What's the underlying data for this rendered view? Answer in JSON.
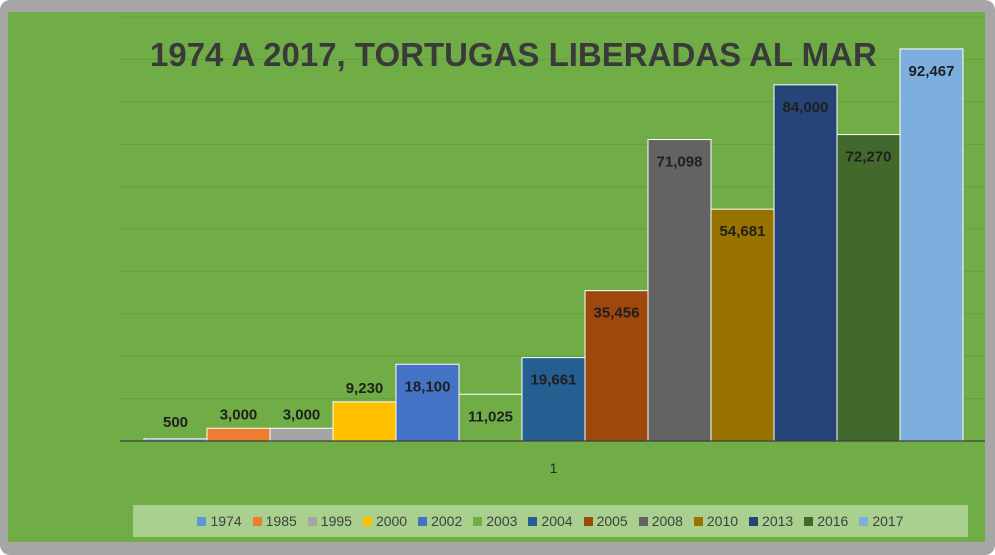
{
  "chart_data": {
    "type": "bar",
    "title": "1974 A 2017, TORTUGAS LIBERADAS AL MAR",
    "categories": [
      "1"
    ],
    "series": [
      {
        "name": "1974",
        "values": [
          500
        ],
        "label": "500",
        "color": "#5b9bd5"
      },
      {
        "name": "1985",
        "values": [
          3000
        ],
        "label": "3,000",
        "color": "#ed7d31"
      },
      {
        "name": "1995",
        "values": [
          3000
        ],
        "label": "3,000",
        "color": "#a5a5a5"
      },
      {
        "name": "2000",
        "values": [
          9230
        ],
        "label": "9,230",
        "color": "#ffc000"
      },
      {
        "name": "2002",
        "values": [
          18100
        ],
        "label": "18,100",
        "color": "#4472c4"
      },
      {
        "name": "2003",
        "values": [
          11025
        ],
        "label": "11,025",
        "color": "#70ad47"
      },
      {
        "name": "2004",
        "values": [
          19661
        ],
        "label": "19,661",
        "color": "#255e91"
      },
      {
        "name": "2005",
        "values": [
          35456
        ],
        "label": "35,456",
        "color": "#9e480e"
      },
      {
        "name": "2008",
        "values": [
          71098
        ],
        "label": "71,098",
        "color": "#636363"
      },
      {
        "name": "2010",
        "values": [
          54681
        ],
        "label": "54,681",
        "color": "#997300"
      },
      {
        "name": "2013",
        "values": [
          84000
        ],
        "label": "84,000",
        "color": "#264478"
      },
      {
        "name": "2016",
        "values": [
          72270
        ],
        "label": "72,270",
        "color": "#43682b"
      },
      {
        "name": "2017",
        "values": [
          92467
        ],
        "label": "92,467",
        "color": "#7cafdd"
      }
    ],
    "ylim": [
      0,
      100000
    ],
    "grid": true,
    "legend_position": "bottom",
    "colors": {
      "background": "#70ad47",
      "frame": "#a6a6a6",
      "legend_background": "#a9d08e",
      "gridline": "#63a03c",
      "axis": "#3f3f3f"
    }
  }
}
